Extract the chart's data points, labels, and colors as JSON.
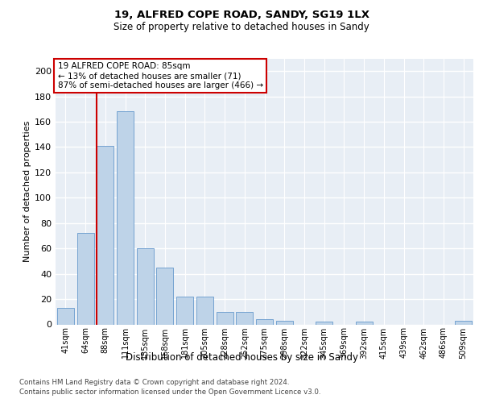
{
  "title1": "19, ALFRED COPE ROAD, SANDY, SG19 1LX",
  "title2": "Size of property relative to detached houses in Sandy",
  "xlabel": "Distribution of detached houses by size in Sandy",
  "ylabel": "Number of detached properties",
  "bar_labels": [
    "41sqm",
    "64sqm",
    "88sqm",
    "111sqm",
    "135sqm",
    "158sqm",
    "181sqm",
    "205sqm",
    "228sqm",
    "252sqm",
    "275sqm",
    "298sqm",
    "322sqm",
    "345sqm",
    "369sqm",
    "392sqm",
    "415sqm",
    "439sqm",
    "462sqm",
    "486sqm",
    "509sqm"
  ],
  "bar_values": [
    13,
    72,
    141,
    168,
    60,
    45,
    22,
    22,
    10,
    10,
    4,
    3,
    0,
    2,
    0,
    2,
    0,
    0,
    0,
    0,
    3
  ],
  "bar_color": "#bed3e8",
  "bar_edge_color": "#6699cc",
  "annotation_line1": "19 ALFRED COPE ROAD: 85sqm",
  "annotation_line2": "← 13% of detached houses are smaller (71)",
  "annotation_line3": "87% of semi-detached houses are larger (466) →",
  "annotation_box_color": "#ffffff",
  "annotation_box_edge": "#cc0000",
  "vline_color": "#cc0000",
  "ylim": [
    0,
    210
  ],
  "yticks": [
    0,
    20,
    40,
    60,
    80,
    100,
    120,
    140,
    160,
    180,
    200
  ],
  "footer1": "Contains HM Land Registry data © Crown copyright and database right 2024.",
  "footer2": "Contains public sector information licensed under the Open Government Licence v3.0.",
  "plot_bg_color": "#e8eef5"
}
